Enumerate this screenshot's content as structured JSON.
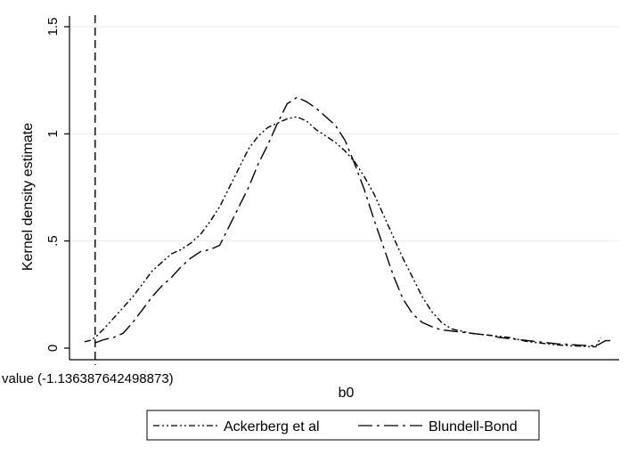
{
  "chart_data": {
    "type": "line",
    "title": "",
    "xlabel": "b0",
    "ylabel": "Kernel density estimate",
    "ylim": [
      0,
      1.5
    ],
    "yticks": [
      "0",
      ".5",
      "1",
      "1.5"
    ],
    "xlim": [
      -1.18,
      1.0
    ],
    "grid": true,
    "legend_position": "bottom",
    "reference_line": {
      "x": -1.136387642498873,
      "label": "value (-1.136387642498873)",
      "style": "dashed"
    },
    "series": [
      {
        "name": "Ackerberg et al",
        "style": "dash-dot-dot",
        "color": "#000000",
        "x": [
          -1.18,
          -1.16,
          -1.136,
          -1.1,
          -1.06,
          -1.02,
          -0.98,
          -0.94,
          -0.9,
          -0.86,
          -0.82,
          -0.78,
          -0.74,
          -0.7,
          -0.66,
          -0.62,
          -0.58,
          -0.54,
          -0.5,
          -0.46,
          -0.42,
          -0.38,
          -0.34,
          -0.3,
          -0.26,
          -0.22,
          -0.18,
          -0.14,
          -0.1,
          -0.06,
          -0.02,
          0.02,
          0.06,
          0.1,
          0.14,
          0.18,
          0.22,
          0.26,
          0.3,
          0.34,
          0.38,
          0.42,
          0.46,
          0.5,
          0.54,
          0.58,
          0.62,
          0.66,
          0.7,
          0.74,
          0.78,
          0.82,
          0.86,
          0.9,
          0.94,
          0.96
        ],
        "y": [
          0.03,
          0.035,
          0.05,
          0.09,
          0.14,
          0.19,
          0.24,
          0.3,
          0.36,
          0.4,
          0.44,
          0.46,
          0.49,
          0.53,
          0.59,
          0.66,
          0.75,
          0.84,
          0.93,
          0.99,
          1.03,
          1.05,
          1.07,
          1.08,
          1.06,
          1.02,
          0.99,
          0.96,
          0.92,
          0.87,
          0.8,
          0.72,
          0.62,
          0.52,
          0.42,
          0.33,
          0.24,
          0.17,
          0.12,
          0.09,
          0.08,
          0.07,
          0.065,
          0.06,
          0.055,
          0.05,
          0.04,
          0.03,
          0.025,
          0.02,
          0.015,
          0.012,
          0.01,
          0.008,
          0.006,
          0.05
        ]
      },
      {
        "name": "Blundell-Bond",
        "style": "long-dash-dot",
        "color": "#000000",
        "x": [
          -1.136,
          -1.1,
          -1.06,
          -1.02,
          -0.98,
          -0.94,
          -0.9,
          -0.86,
          -0.82,
          -0.78,
          -0.74,
          -0.7,
          -0.66,
          -0.62,
          -0.58,
          -0.54,
          -0.5,
          -0.46,
          -0.42,
          -0.38,
          -0.34,
          -0.3,
          -0.26,
          -0.22,
          -0.18,
          -0.14,
          -0.1,
          -0.06,
          -0.02,
          0.02,
          0.06,
          0.1,
          0.14,
          0.18,
          0.22,
          0.26,
          0.3,
          0.34,
          0.38,
          0.42,
          0.46,
          0.5,
          0.54,
          0.58,
          0.62,
          0.66,
          0.7,
          0.74,
          0.78,
          0.82,
          0.86,
          0.9,
          0.94,
          0.98,
          1.0
        ],
        "y": [
          0.025,
          0.04,
          0.05,
          0.07,
          0.12,
          0.18,
          0.24,
          0.29,
          0.33,
          0.38,
          0.42,
          0.45,
          0.46,
          0.48,
          0.57,
          0.66,
          0.75,
          0.86,
          0.95,
          1.05,
          1.14,
          1.17,
          1.15,
          1.12,
          1.08,
          1.04,
          0.97,
          0.86,
          0.74,
          0.6,
          0.47,
          0.34,
          0.23,
          0.16,
          0.12,
          0.1,
          0.085,
          0.08,
          0.075,
          0.07,
          0.065,
          0.06,
          0.05,
          0.045,
          0.04,
          0.035,
          0.03,
          0.025,
          0.02,
          0.018,
          0.015,
          0.012,
          0.01,
          0.035,
          0.035
        ]
      }
    ]
  }
}
